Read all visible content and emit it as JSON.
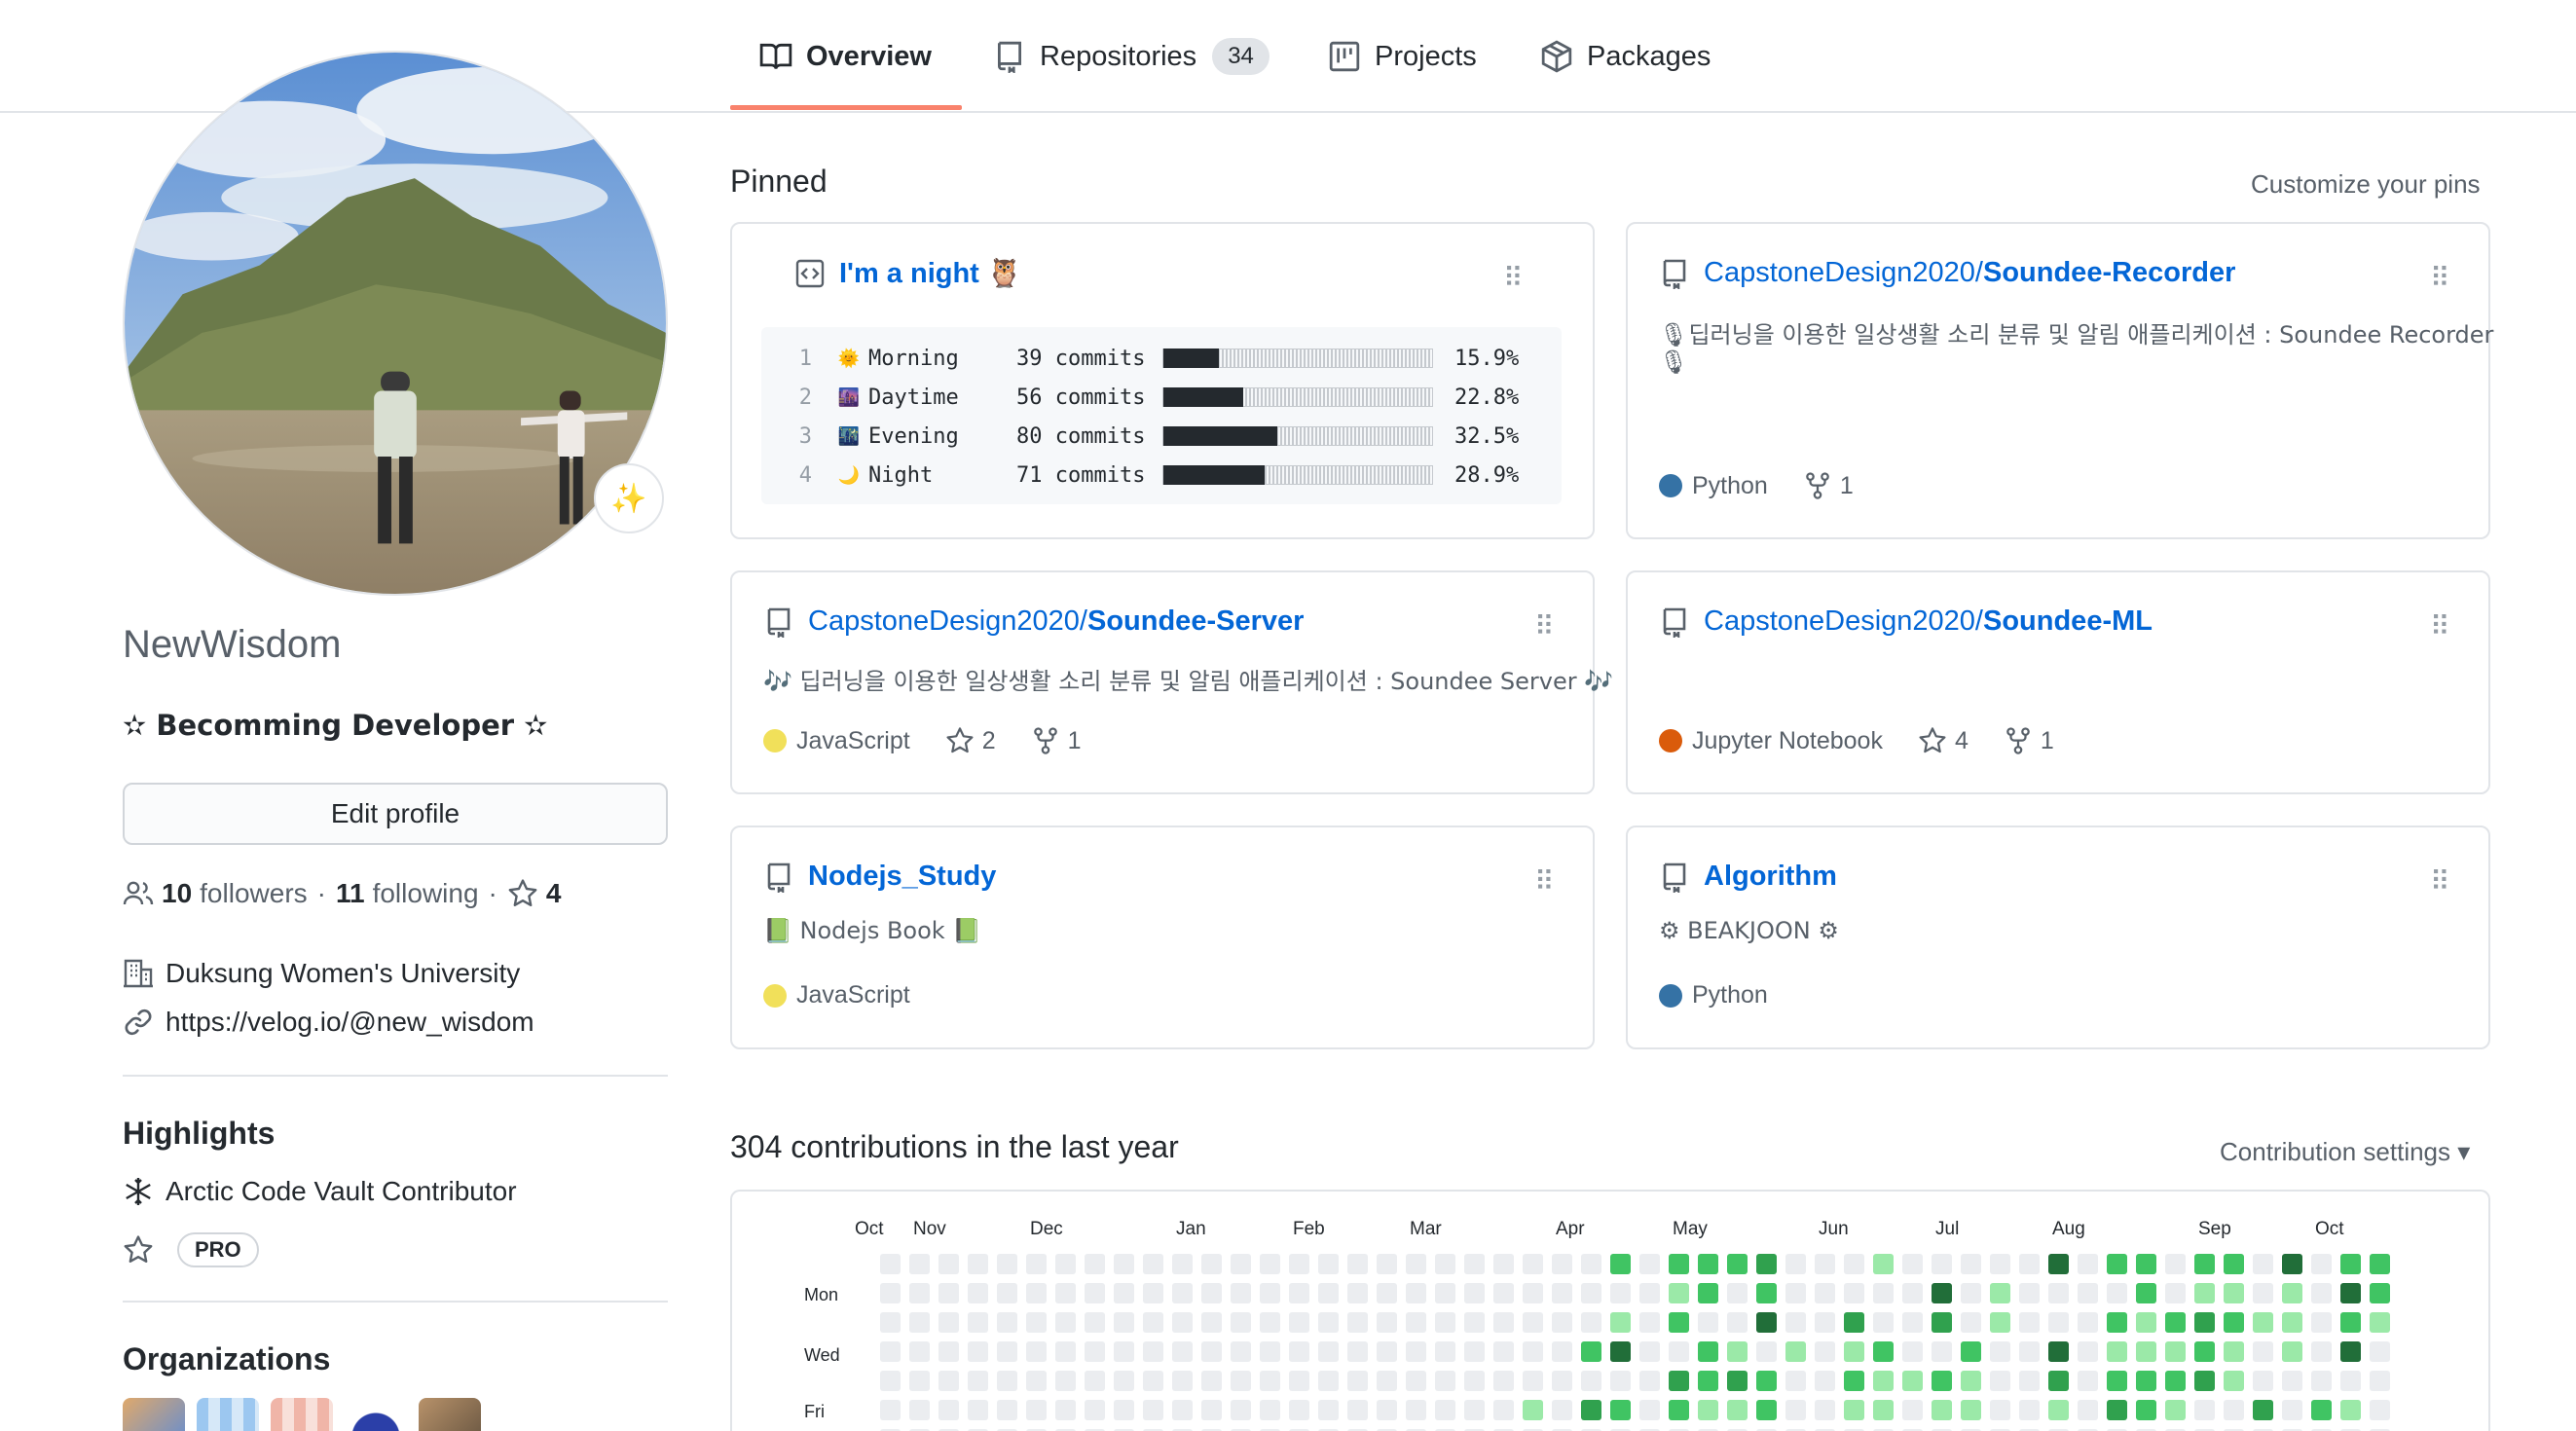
{
  "tabs": [
    {
      "label": "Overview",
      "active": true
    },
    {
      "label": "Repositories",
      "count": "34"
    },
    {
      "label": "Projects"
    },
    {
      "label": "Packages"
    }
  ],
  "profile": {
    "status_emoji": "✨",
    "username": "NewWisdom",
    "bio": "✫ Becomming Developer ✫",
    "edit_button": "Edit profile",
    "followers_count": "10",
    "followers_label": "followers",
    "following_count": "11",
    "following_label": "following",
    "stars_count": "4",
    "separator": "·",
    "company": "Duksung Women's University",
    "website": "https://velog.io/@new_wisdom"
  },
  "highlights": {
    "title": "Highlights",
    "items": [
      "Arctic Code Vault Contributor"
    ],
    "pro_label": "PRO"
  },
  "organizations": {
    "title": "Organizations"
  },
  "pinned": {
    "title": "Pinned",
    "customize": "Customize your pins",
    "gist": {
      "title": "I'm a night 🦉",
      "rows": [
        {
          "n": "1",
          "emoji": "🌞",
          "period": "Morning",
          "commits": "39 commits",
          "pct": "15.9%",
          "value": 15.9
        },
        {
          "n": "2",
          "emoji": "🌆",
          "period": "Daytime",
          "commits": "56 commits",
          "pct": "22.8%",
          "value": 22.8
        },
        {
          "n": "3",
          "emoji": "🌃",
          "period": "Evening",
          "commits": "80 commits",
          "pct": "32.5%",
          "value": 32.5
        },
        {
          "n": "4",
          "emoji": "🌙",
          "period": "Night",
          "commits": "71 commits",
          "pct": "28.9%",
          "value": 28.9
        }
      ]
    },
    "repos": [
      {
        "owner": "CapstoneDesign2020/",
        "name": "Soundee-Recorder",
        "desc1": "🎙딥러닝을 이용한 일상생활 소리 분류 및 알림 애플리케이션 : Soundee Recorder",
        "desc2": "🎙",
        "language": "Python",
        "lang_color": "#3572A5",
        "forks": "1"
      },
      {
        "owner": "CapstoneDesign2020/",
        "name": "Soundee-Server",
        "desc1": "🎶 딥러닝을 이용한 일상생활 소리 분류 및 알림 애플리케이션 : Soundee Server 🎶",
        "language": "JavaScript",
        "lang_color": "#f1e05a",
        "stars": "2",
        "forks": "1"
      },
      {
        "owner": "CapstoneDesign2020/",
        "name": "Soundee-ML",
        "desc1": "",
        "language": "Jupyter Notebook",
        "lang_color": "#DA5B0B",
        "stars": "4",
        "forks": "1"
      },
      {
        "owner": "",
        "name": "Nodejs_Study",
        "desc1": "📗 Nodejs Book 📗",
        "language": "JavaScript",
        "lang_color": "#f1e05a"
      },
      {
        "owner": "",
        "name": "Algorithm",
        "desc1": "⚙ BEAKJOON ⚙",
        "language": "Python",
        "lang_color": "#3572A5"
      }
    ]
  },
  "contributions": {
    "title": "304 contributions in the last year",
    "settings": "Contribution settings ▾",
    "months": [
      "Oct",
      "Nov",
      "Dec",
      "Jan",
      "Feb",
      "Mar",
      "Apr",
      "May",
      "Jun",
      "Jul",
      "Aug",
      "Sep",
      "Oct"
    ],
    "days": [
      "Mon",
      "Wed",
      "Fri"
    ],
    "colors": [
      "#ebedf0",
      "#9be9a8",
      "#40c463",
      "#30a14e",
      "#216e39"
    ],
    "weeks": [
      [
        0,
        0,
        0,
        0,
        0,
        0,
        0
      ],
      [
        0,
        0,
        0,
        0,
        0,
        0,
        0
      ],
      [
        0,
        0,
        0,
        0,
        0,
        0,
        0
      ],
      [
        0,
        0,
        0,
        0,
        0,
        0,
        0
      ],
      [
        0,
        0,
        0,
        0,
        0,
        0,
        0
      ],
      [
        0,
        0,
        0,
        0,
        0,
        0,
        0
      ],
      [
        0,
        0,
        0,
        0,
        0,
        0,
        0
      ],
      [
        0,
        0,
        0,
        0,
        0,
        0,
        0
      ],
      [
        0,
        0,
        0,
        0,
        0,
        0,
        0
      ],
      [
        0,
        0,
        0,
        0,
        0,
        0,
        0
      ],
      [
        0,
        0,
        0,
        0,
        0,
        0,
        0
      ],
      [
        0,
        0,
        0,
        0,
        0,
        0,
        0
      ],
      [
        0,
        0,
        0,
        0,
        0,
        0,
        0
      ],
      [
        0,
        0,
        0,
        0,
        0,
        0,
        0
      ],
      [
        0,
        0,
        0,
        0,
        0,
        0,
        0
      ],
      [
        0,
        0,
        0,
        0,
        0,
        0,
        0
      ],
      [
        0,
        0,
        0,
        0,
        0,
        0,
        0
      ],
      [
        0,
        0,
        0,
        0,
        0,
        0,
        0
      ],
      [
        0,
        0,
        0,
        0,
        0,
        0,
        0
      ],
      [
        0,
        0,
        0,
        0,
        0,
        0,
        0
      ],
      [
        0,
        0,
        0,
        0,
        0,
        0,
        0
      ],
      [
        0,
        0,
        0,
        0,
        0,
        0,
        0
      ],
      [
        0,
        0,
        0,
        0,
        0,
        1,
        0
      ],
      [
        0,
        0,
        0,
        0,
        0,
        0,
        0
      ],
      [
        0,
        0,
        0,
        2,
        0,
        3,
        0
      ],
      [
        2,
        0,
        1,
        4,
        0,
        2,
        0
      ],
      [
        0,
        0,
        0,
        0,
        0,
        0,
        0
      ],
      [
        2,
        1,
        2,
        0,
        3,
        2,
        0
      ],
      [
        2,
        2,
        0,
        2,
        2,
        1,
        0
      ],
      [
        2,
        0,
        0,
        1,
        3,
        1,
        0
      ],
      [
        3,
        2,
        4,
        0,
        2,
        2,
        0
      ],
      [
        0,
        0,
        0,
        1,
        0,
        0,
        0
      ],
      [
        0,
        0,
        0,
        0,
        0,
        0,
        0
      ],
      [
        0,
        0,
        3,
        1,
        2,
        1,
        0
      ],
      [
        1,
        0,
        0,
        2,
        1,
        1,
        0
      ],
      [
        0,
        0,
        0,
        0,
        1,
        0,
        0
      ],
      [
        0,
        4,
        3,
        0,
        2,
        1,
        0
      ],
      [
        0,
        0,
        0,
        2,
        1,
        1,
        0
      ],
      [
        0,
        1,
        1,
        0,
        0,
        0,
        0
      ],
      [
        0,
        0,
        0,
        0,
        0,
        0,
        0
      ],
      [
        4,
        0,
        0,
        4,
        3,
        1,
        0
      ],
      [
        0,
        0,
        0,
        0,
        0,
        0,
        0
      ],
      [
        2,
        0,
        2,
        1,
        2,
        3,
        0
      ],
      [
        2,
        2,
        1,
        1,
        2,
        2,
        0
      ],
      [
        0,
        0,
        2,
        1,
        2,
        1,
        0
      ],
      [
        2,
        1,
        3,
        2,
        3,
        0,
        0
      ],
      [
        2,
        1,
        2,
        1,
        1,
        0,
        0
      ],
      [
        0,
        0,
        1,
        0,
        0,
        3,
        0
      ],
      [
        4,
        1,
        1,
        1,
        0,
        0,
        0
      ],
      [
        0,
        0,
        0,
        0,
        0,
        2,
        0
      ],
      [
        2,
        4,
        2,
        4,
        0,
        1,
        0
      ],
      [
        2,
        2,
        1,
        0,
        0,
        0,
        0
      ]
    ]
  }
}
